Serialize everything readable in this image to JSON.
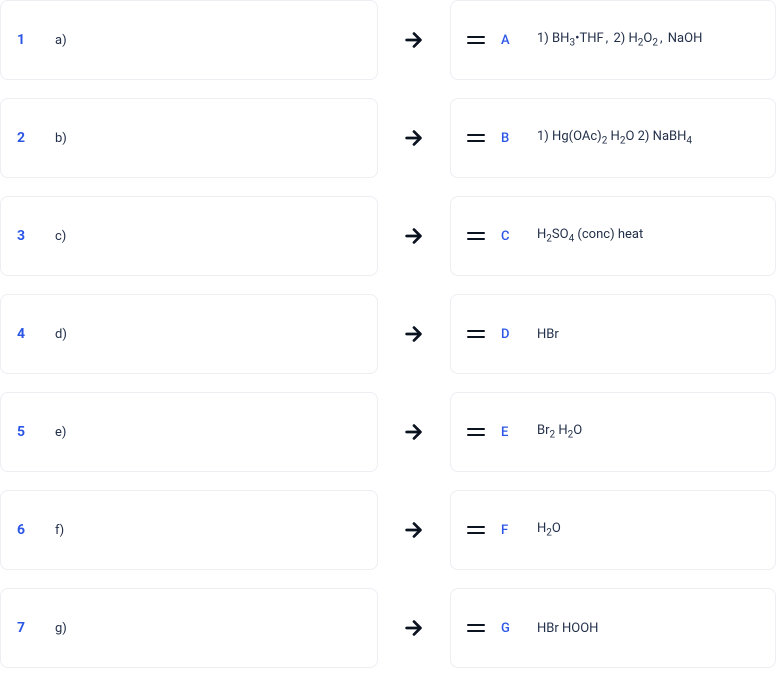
{
  "colors": {
    "accent": "#2c57e6",
    "text": "#23304a",
    "border": "#eceef2",
    "arrow": "#0b1220"
  },
  "rows": [
    {
      "num": "1",
      "left": "a)",
      "letter": "A",
      "answer_html": "1) BH<span class='sub'>3</span>•THF<span class='comma'>,</span> 2) H<span class='sub'>2</span>O<span class='sub'>2</span><span class='comma'>,</span> NaOH"
    },
    {
      "num": "2",
      "left": "b)",
      "letter": "B",
      "answer_html": "1) Hg(OAc)<span class='sub'>2</span> H<span class='sub'>2</span>O 2) NaBH<span class='sub'>4</span>"
    },
    {
      "num": "3",
      "left": "c)",
      "letter": "C",
      "answer_html": "H<span class='sub'>2</span>SO<span class='sub'>4</span> (conc) heat"
    },
    {
      "num": "4",
      "left": "d)",
      "letter": "D",
      "answer_html": "HBr"
    },
    {
      "num": "5",
      "left": "e)",
      "letter": "E",
      "answer_html": "Br<span class='sub'>2</span> H<span class='sub'>2</span>O"
    },
    {
      "num": "6",
      "left": "f)",
      "letter": "F",
      "answer_html": "H<span class='sub'>2</span>O"
    },
    {
      "num": "7",
      "left": "g)",
      "letter": "G",
      "answer_html": "HBr HOOH"
    }
  ]
}
